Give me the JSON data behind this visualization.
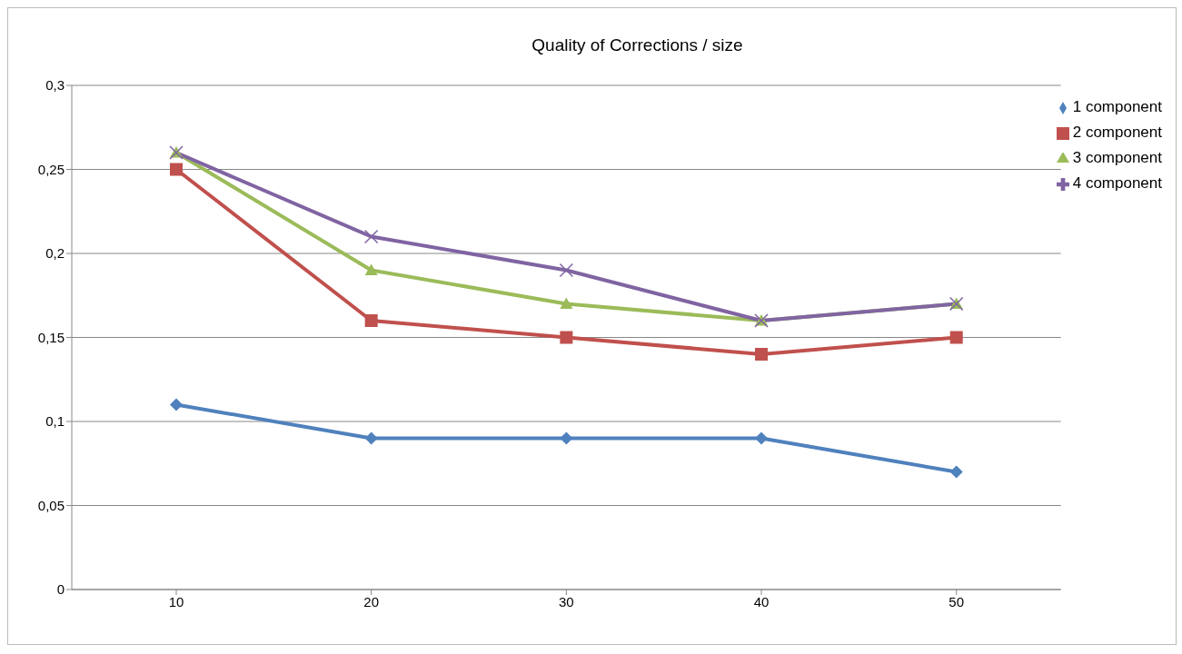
{
  "chart_data": {
    "type": "line",
    "title": "Quality of Corrections / size",
    "categories": [
      "10",
      "20",
      "30",
      "40",
      "50"
    ],
    "series": [
      {
        "name": "1 component",
        "color": "#4f81bd",
        "marker": "diamond",
        "values": [
          0.11,
          0.09,
          0.09,
          0.09,
          0.07
        ]
      },
      {
        "name": "2 component",
        "color": "#c0504d",
        "marker": "square",
        "values": [
          0.25,
          0.16,
          0.15,
          0.14,
          0.15
        ]
      },
      {
        "name": "3 component",
        "color": "#9bbb59",
        "marker": "triangle",
        "values": [
          0.26,
          0.19,
          0.17,
          0.16,
          0.17
        ]
      },
      {
        "name": "4 component",
        "color": "#8064a2",
        "marker": "cross",
        "values": [
          0.26,
          0.21,
          0.19,
          0.16,
          0.17
        ]
      }
    ],
    "ylim": [
      0,
      0.3
    ],
    "yticks": [
      0,
      {
        "value": 0.05,
        "label": "0,05"
      },
      {
        "value": 0.1,
        "label": "0,1"
      },
      {
        "value": 0.15,
        "label": "0,15"
      },
      {
        "value": 0.2,
        "label": "0,2"
      },
      {
        "value": 0.25,
        "label": "0,25"
      },
      {
        "value": 0.3,
        "label": "0,3"
      }
    ],
    "grid": "y",
    "legend": "top right",
    "line_style": "solid"
  }
}
